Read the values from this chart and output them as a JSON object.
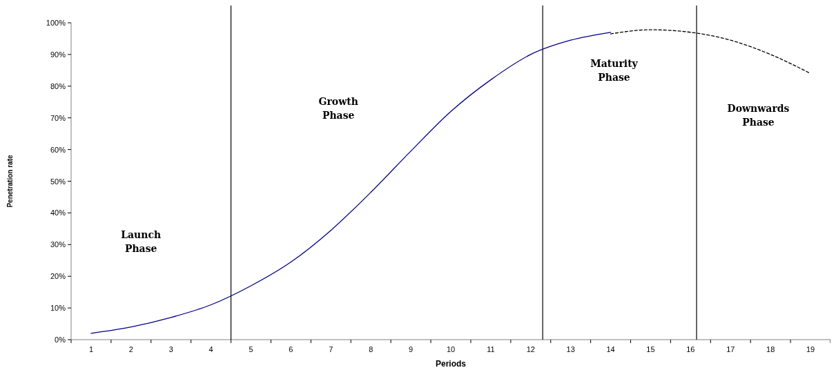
{
  "chart_data": {
    "type": "line",
    "xlabel": "Periods",
    "ylabel": "Penetration rate",
    "xlim": [
      0.5,
      19.5
    ],
    "xticks": [
      1,
      2,
      3,
      4,
      5,
      6,
      7,
      8,
      9,
      10,
      11,
      12,
      13,
      14,
      15,
      16,
      17,
      18,
      19
    ],
    "ylim": [
      0,
      100
    ],
    "yticks": [
      {
        "value": 0,
        "label": "0%"
      },
      {
        "value": 10,
        "label": "10%"
      },
      {
        "value": 20,
        "label": "20%"
      },
      {
        "value": 30,
        "label": "30%"
      },
      {
        "value": 40,
        "label": "40%"
      },
      {
        "value": 50,
        "label": "50%"
      },
      {
        "value": 60,
        "label": "60%"
      },
      {
        "value": 70,
        "label": "70%"
      },
      {
        "value": 80,
        "label": "80%"
      },
      {
        "value": 90,
        "label": "90%"
      },
      {
        "value": 100,
        "label": "100%"
      }
    ],
    "grid": false,
    "marker": "none",
    "series": [
      {
        "color": "#000080",
        "line_style": "solid",
        "x": [
          1,
          2,
          3,
          4,
          5,
          6,
          7,
          8,
          9,
          10,
          11,
          12,
          13,
          14
        ],
        "values": [
          2,
          4,
          7,
          11,
          17,
          24.5,
          34.5,
          46.5,
          59.5,
          72,
          82,
          90,
          94.5,
          97
        ]
      },
      {
        "color": "#000000",
        "line_style": "dashed",
        "x": [
          14,
          15,
          16,
          17,
          18,
          19
        ],
        "values": [
          96.5,
          97.8,
          97,
          94.5,
          90,
          84
        ]
      }
    ],
    "ref_lines": [
      {
        "axis": "x",
        "value": 4.5,
        "color": "#000000"
      },
      {
        "axis": "x",
        "value": 12.3,
        "color": "#000000"
      },
      {
        "axis": "x",
        "value": 16.15,
        "color": "#000000"
      }
    ],
    "annotations": [
      "Launch Phase",
      "Growth Phase",
      "Maturity Phase",
      "Downwards Phase"
    ]
  }
}
